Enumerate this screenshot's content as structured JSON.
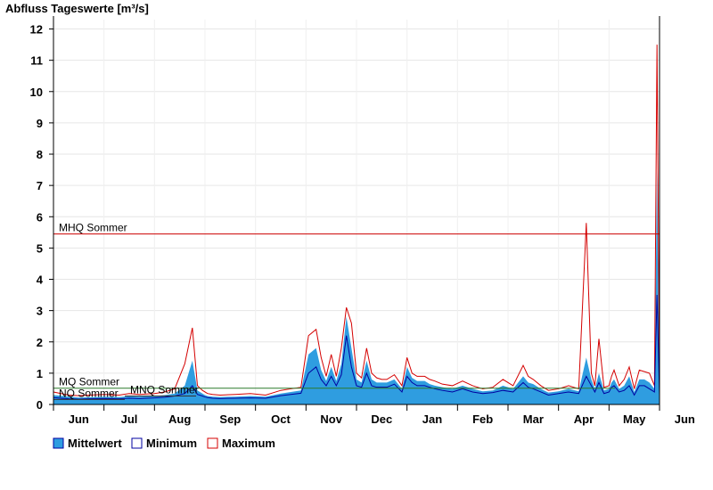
{
  "chart_data": {
    "type": "area",
    "title": "Abfluss Tageswerte [m³/s]",
    "ylim": [
      0,
      12.3
    ],
    "yticks": [
      0,
      1,
      2,
      3,
      4,
      5,
      6,
      7,
      8,
      9,
      10,
      11,
      12
    ],
    "xlim": [
      0,
      12.5
    ],
    "month_labels": [
      "Jun",
      "Jul",
      "Aug",
      "Sep",
      "Oct",
      "Nov",
      "Dec",
      "Jan",
      "Feb",
      "Mar",
      "Apr",
      "May",
      "Jun"
    ],
    "grid": true,
    "legend_position": "bottom-left",
    "reference_lines": [
      {
        "label": "MHQ Sommer",
        "value": 5.45,
        "color": "#cc0000"
      },
      {
        "label": "MQ Sommer",
        "value": 0.52,
        "color": "#2a7a2a"
      },
      {
        "label": "MNQ Sommer",
        "value": 0.27,
        "color": "#333333"
      },
      {
        "label": "NQ Sommer",
        "value": 0.16,
        "color": "#333333"
      }
    ],
    "x": [
      0,
      0.15,
      0.3,
      0.5,
      0.7,
      1.0,
      1.3,
      1.5,
      1.7,
      2.0,
      2.2,
      2.4,
      2.6,
      2.75,
      2.85,
      2.95,
      3.0,
      3.05,
      3.15,
      3.3,
      3.6,
      3.9,
      4.2,
      4.5,
      4.7,
      4.9,
      5.05,
      5.2,
      5.3,
      5.4,
      5.5,
      5.6,
      5.7,
      5.8,
      5.9,
      6.0,
      6.1,
      6.2,
      6.3,
      6.4,
      6.5,
      6.6,
      6.75,
      6.9,
      7.0,
      7.1,
      7.2,
      7.35,
      7.45,
      7.55,
      7.7,
      7.9,
      8.1,
      8.3,
      8.5,
      8.7,
      8.9,
      9.1,
      9.3,
      9.4,
      9.5,
      9.65,
      9.8,
      10.0,
      10.2,
      10.4,
      10.55,
      10.65,
      10.72,
      10.8,
      10.9,
      11.0,
      11.05,
      11.1,
      11.2,
      11.3,
      11.4,
      11.5,
      11.6,
      11.7,
      11.8,
      11.9,
      11.95,
      12.0
    ],
    "series": [
      {
        "name": "Maximum",
        "color": "#d40000",
        "values": [
          0.4,
          0.35,
          0.3,
          0.28,
          0.3,
          0.32,
          0.3,
          0.35,
          0.32,
          0.35,
          0.4,
          0.5,
          1.3,
          2.45,
          0.6,
          0.45,
          0.4,
          0.35,
          0.32,
          0.3,
          0.32,
          0.35,
          0.3,
          0.45,
          0.5,
          0.55,
          2.2,
          2.4,
          1.5,
          0.9,
          1.6,
          0.9,
          1.8,
          3.1,
          2.6,
          1.0,
          0.85,
          1.8,
          1.0,
          0.85,
          0.8,
          0.8,
          0.95,
          0.6,
          1.5,
          1.0,
          0.9,
          0.9,
          0.8,
          0.75,
          0.65,
          0.6,
          0.75,
          0.6,
          0.5,
          0.55,
          0.8,
          0.6,
          1.25,
          0.9,
          0.8,
          0.6,
          0.45,
          0.5,
          0.6,
          0.5,
          5.8,
          1.0,
          0.6,
          2.1,
          0.55,
          0.6,
          0.9,
          1.1,
          0.6,
          0.8,
          1.2,
          0.5,
          1.1,
          1.05,
          1.0,
          0.6,
          11.5,
          0.7
        ]
      },
      {
        "name": "Mittelwert",
        "color": "#2f9de0",
        "values": [
          0.3,
          0.28,
          0.25,
          0.22,
          0.23,
          0.25,
          0.24,
          0.26,
          0.25,
          0.27,
          0.3,
          0.35,
          0.6,
          1.4,
          0.45,
          0.35,
          0.3,
          0.27,
          0.25,
          0.24,
          0.25,
          0.27,
          0.25,
          0.35,
          0.4,
          0.45,
          1.6,
          1.8,
          1.1,
          0.75,
          1.2,
          0.75,
          1.3,
          2.8,
          1.8,
          0.8,
          0.7,
          1.4,
          0.8,
          0.7,
          0.7,
          0.7,
          0.8,
          0.5,
          1.2,
          0.85,
          0.75,
          0.75,
          0.65,
          0.6,
          0.55,
          0.5,
          0.6,
          0.5,
          0.42,
          0.45,
          0.6,
          0.5,
          0.9,
          0.7,
          0.65,
          0.5,
          0.38,
          0.42,
          0.5,
          0.42,
          1.5,
          0.8,
          0.5,
          1.0,
          0.45,
          0.5,
          0.7,
          0.8,
          0.5,
          0.6,
          0.9,
          0.4,
          0.8,
          0.8,
          0.7,
          0.5,
          7.5,
          0.5
        ]
      },
      {
        "name": "Minimum",
        "color": "#0000a0",
        "values": [
          0.22,
          0.2,
          0.18,
          0.17,
          0.18,
          0.19,
          0.18,
          0.2,
          0.19,
          0.21,
          0.23,
          0.27,
          0.35,
          0.6,
          0.32,
          0.27,
          0.24,
          0.22,
          0.2,
          0.19,
          0.2,
          0.21,
          0.2,
          0.28,
          0.32,
          0.36,
          1.0,
          1.2,
          0.8,
          0.6,
          0.9,
          0.6,
          0.95,
          2.2,
          1.2,
          0.6,
          0.55,
          1.0,
          0.6,
          0.55,
          0.55,
          0.55,
          0.65,
          0.4,
          0.9,
          0.7,
          0.6,
          0.6,
          0.55,
          0.5,
          0.45,
          0.4,
          0.5,
          0.4,
          0.35,
          0.38,
          0.45,
          0.4,
          0.7,
          0.55,
          0.5,
          0.4,
          0.3,
          0.35,
          0.4,
          0.35,
          0.9,
          0.6,
          0.4,
          0.7,
          0.35,
          0.4,
          0.55,
          0.6,
          0.4,
          0.45,
          0.6,
          0.3,
          0.6,
          0.6,
          0.5,
          0.4,
          3.5,
          0.3
        ]
      }
    ]
  }
}
